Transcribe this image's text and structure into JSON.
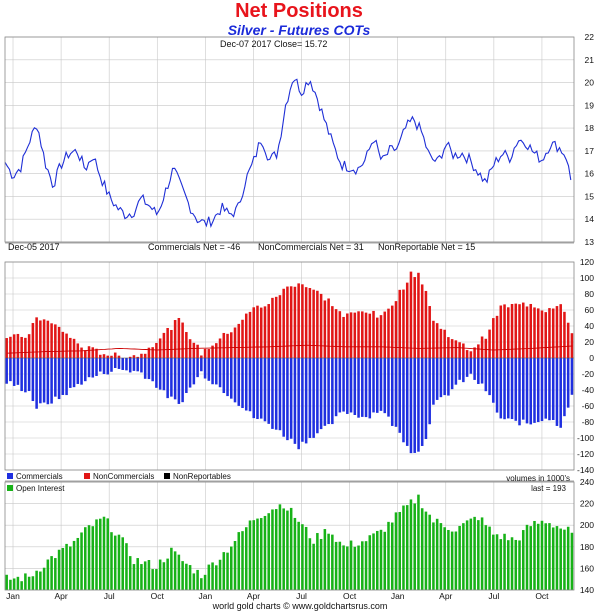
{
  "title": "Net Positions",
  "subtitle": "Silver - Futures COTs",
  "footer": "world gold charts © www.goldchartsrus.com",
  "colors": {
    "price": "#1f2fd6",
    "commercials": "#1f2fe0",
    "noncommercials": "#e11616",
    "nonreportables": "#000000",
    "open_interest": "#17b217",
    "nonreportable_line": "#cc0000",
    "grid": "#c8c8c8",
    "frame": "#888888"
  },
  "x_axis": {
    "months": [
      "Jan",
      "Apr",
      "Jul",
      "Oct",
      "Jan",
      "Apr",
      "Jul",
      "Oct",
      "Jan",
      "Apr",
      "Jul",
      "Oct"
    ],
    "month_index": [
      0,
      3,
      6,
      9,
      12,
      15,
      18,
      21,
      24,
      27,
      30,
      33
    ]
  },
  "chart_data": [
    {
      "type": "line",
      "name": "price",
      "header": "Dec-07  2017   Close= 15.72",
      "ylim": [
        13,
        22
      ],
      "yticks": [
        13,
        14,
        15,
        16,
        17,
        18,
        19,
        20,
        21,
        22
      ],
      "x_months": [
        0,
        0.5,
        1,
        1.5,
        2,
        2.5,
        3,
        3.5,
        4,
        4.5,
        5,
        5.5,
        6,
        6.5,
        7,
        7.5,
        8,
        8.5,
        9,
        9.5,
        10,
        10.5,
        11,
        11.5,
        12,
        12.5,
        13,
        13.5,
        14,
        14.5,
        15,
        15.5,
        16,
        16.5,
        17,
        17.5,
        18,
        18.5,
        19,
        19.5,
        20,
        20.5,
        21,
        21.5,
        22,
        22.5,
        23,
        23.5,
        24,
        24.5,
        25,
        25.5,
        26,
        26.5,
        27,
        27.5,
        28,
        28.5,
        29,
        29.5,
        30,
        30.5,
        31,
        31.5,
        32,
        32.5,
        33,
        33.5,
        34,
        34.5,
        35,
        35.3
      ],
      "values": [
        16.5,
        15.9,
        16.3,
        17.4,
        18.2,
        16.5,
        15.5,
        16.4,
        16.9,
        17.0,
        16.2,
        16.8,
        15.8,
        15.0,
        14.5,
        14.2,
        14.3,
        14.9,
        14.6,
        14.2,
        15.2,
        16.2,
        15.4,
        14.6,
        14.0,
        13.8,
        14.0,
        14.5,
        14.2,
        14.4,
        15.7,
        16.5,
        17.6,
        16.6,
        16.9,
        19.0,
        20.3,
        19.6,
        20.2,
        19.3,
        18.2,
        17.2,
        16.4,
        16.3,
        16.2,
        16.6,
        17.6,
        16.5,
        17.0,
        17.1,
        18.0,
        18.4,
        17.8,
        16.7,
        16.5,
        17.3,
        16.8,
        16.9,
        16.6,
        16.1,
        15.6,
        16.4,
        16.9,
        16.7,
        17.5,
        17.4,
        16.9,
        16.6,
        17.3,
        17.2,
        16.8,
        15.72
      ]
    },
    {
      "type": "bar",
      "name": "net-positions",
      "header": "Dec-05  2017",
      "header_values": [
        "Commercials Net = -46",
        "NonCommercials Net = 31",
        "NonReportable Net = 15"
      ],
      "ylim": [
        -140,
        120
      ],
      "yticks": [
        -140,
        -120,
        -100,
        -80,
        -60,
        -40,
        -20,
        0,
        20,
        40,
        60,
        80,
        100,
        120
      ],
      "legend": [
        "Commercials",
        "NonCommercials",
        "NonReportables"
      ],
      "units": "volumes in 1000's",
      "week_count": 152,
      "series": [
        {
          "name": "NonCommercials",
          "x_weeks": [
            0,
            6,
            8,
            14,
            20,
            26,
            30,
            36,
            40,
            42,
            46,
            52,
            60,
            66,
            70,
            74,
            78,
            82,
            86,
            90,
            96,
            100,
            104,
            108,
            110,
            112,
            114,
            118,
            120,
            124,
            128,
            132,
            136,
            140,
            144,
            148,
            151
          ],
          "values": [
            25,
            28,
            52,
            38,
            14,
            6,
            2,
            4,
            22,
            30,
            48,
            6,
            35,
            62,
            68,
            85,
            95,
            85,
            72,
            52,
            60,
            50,
            75,
            104,
            106,
            84,
            46,
            30,
            20,
            10,
            28,
            64,
            66,
            68,
            60,
            70,
            31
          ]
        },
        {
          "name": "Commercials",
          "x_weeks": [
            0,
            6,
            8,
            14,
            20,
            26,
            30,
            36,
            40,
            42,
            46,
            52,
            60,
            66,
            70,
            74,
            78,
            82,
            86,
            90,
            96,
            100,
            104,
            108,
            110,
            112,
            114,
            118,
            120,
            124,
            128,
            132,
            136,
            140,
            144,
            148,
            151
          ],
          "values": [
            -30,
            -42,
            -62,
            -50,
            -30,
            -18,
            -14,
            -18,
            -34,
            -44,
            -58,
            -18,
            -48,
            -74,
            -82,
            -96,
            -110,
            -96,
            -86,
            -66,
            -74,
            -64,
            -88,
            -115,
            -118,
            -98,
            -60,
            -44,
            -34,
            -22,
            -40,
            -76,
            -80,
            -82,
            -74,
            -84,
            -46
          ]
        },
        {
          "name": "NonReportables",
          "x_weeks": [
            0,
            10,
            20,
            30,
            40,
            50,
            60,
            70,
            80,
            90,
            100,
            110,
            120,
            130,
            140,
            151
          ],
          "values": [
            6,
            8,
            9,
            12,
            10,
            12,
            13,
            14,
            16,
            14,
            14,
            12,
            13,
            10,
            12,
            15
          ]
        }
      ]
    },
    {
      "type": "bar",
      "name": "open-interest",
      "legend": [
        "Open Interest"
      ],
      "last": "last = 193",
      "ylim": [
        140,
        240
      ],
      "yticks": [
        140,
        160,
        180,
        200,
        220,
        240
      ],
      "week_count": 152,
      "x_weeks": [
        0,
        6,
        12,
        18,
        22,
        26,
        30,
        34,
        40,
        44,
        48,
        52,
        58,
        62,
        66,
        70,
        74,
        78,
        82,
        86,
        90,
        96,
        100,
        104,
        110,
        112,
        114,
        120,
        126,
        130,
        136,
        140,
        144,
        151
      ],
      "values": [
        150,
        152,
        170,
        184,
        198,
        206,
        190,
        168,
        162,
        176,
        164,
        154,
        174,
        190,
        206,
        214,
        220,
        204,
        186,
        196,
        180,
        186,
        194,
        208,
        226,
        214,
        204,
        196,
        208,
        192,
        186,
        200,
        204,
        193
      ]
    }
  ]
}
